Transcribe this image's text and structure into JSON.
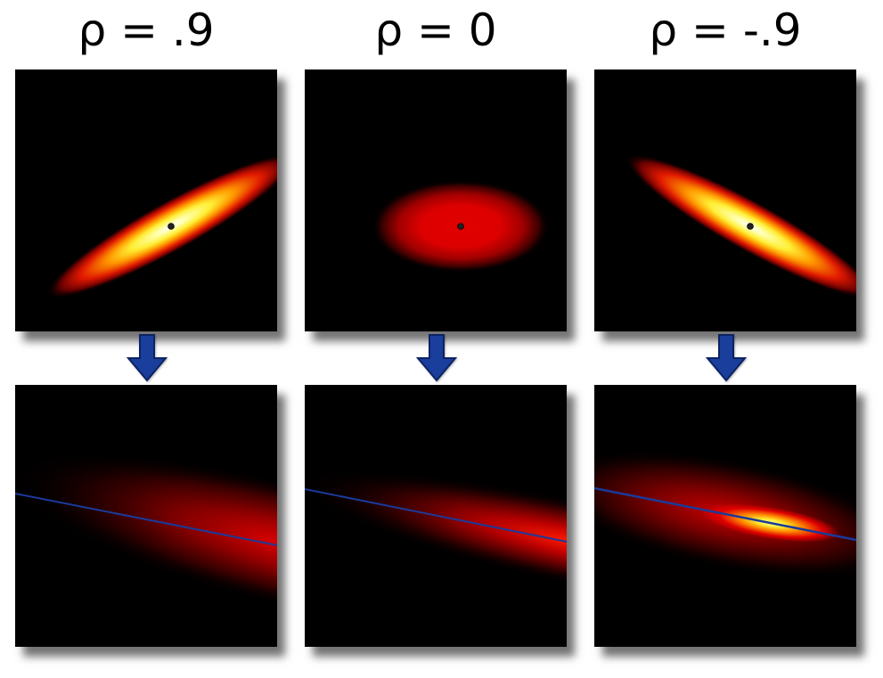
{
  "columns": [
    {
      "id": "pos",
      "title": "ρ = .9",
      "rho": 0.9
    },
    {
      "id": "zero",
      "title": "ρ = 0",
      "rho": 0
    },
    {
      "id": "neg",
      "title": "ρ = -.9",
      "rho": -0.9
    }
  ],
  "colors": {
    "background": "#000000",
    "hot_core": "#ffff66",
    "hot_mid": "#ff9900",
    "hot_outer": "#e00000",
    "arrow_fill": "#1a3e9b",
    "arrow_stroke": "#0c2363",
    "regression_line": "#1b3a9a",
    "mean_dot": "#222222"
  },
  "icons": {
    "arrow": "arrow-down-icon",
    "mean": "mean-point-icon"
  }
}
